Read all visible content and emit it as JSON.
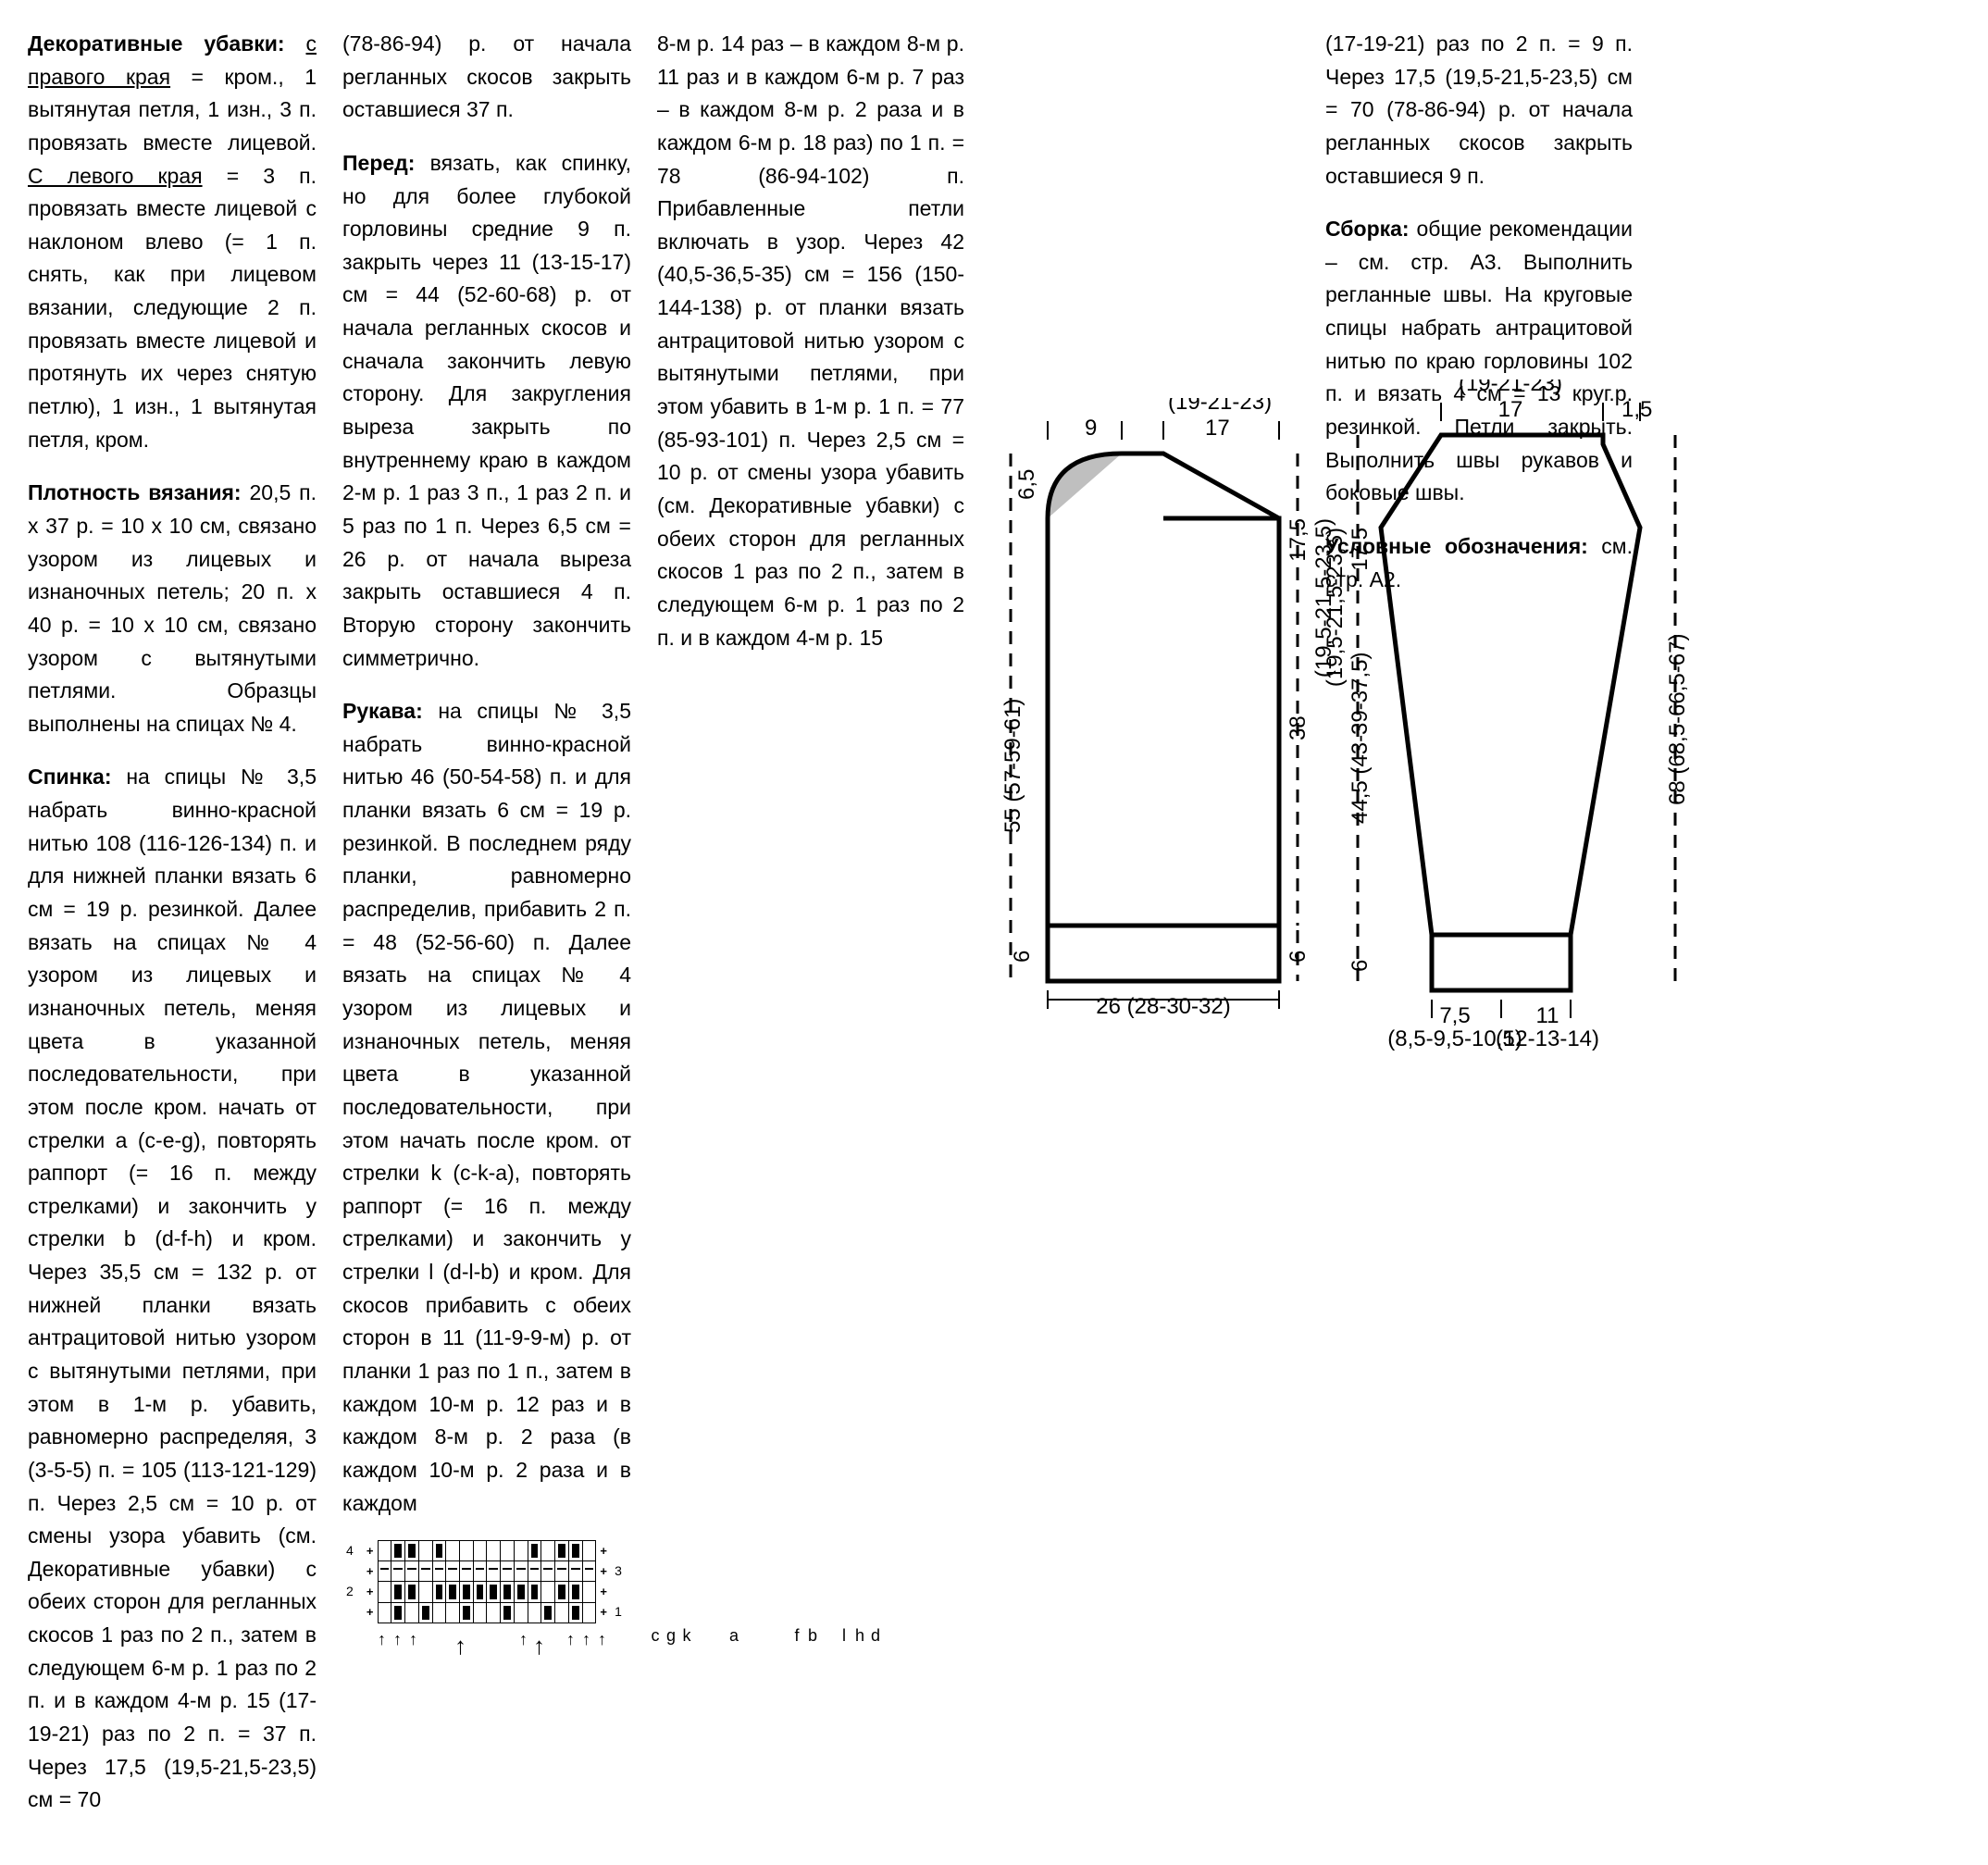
{
  "col1": {
    "p1_label": "Декоративные убавки:",
    "p1_underline1": "с правого края",
    "p1_text1": " = кром., 1 вытянутая петля, 1 изн., 3 п. провязать вместе лицевой. ",
    "p1_underline2": "С левого края",
    "p1_text2": " = 3 п. провязать вместе лицевой с наклоном влево (= 1 п. снять, как при лицевом вязании, следующие 2 п. провязать вместе лицевой и протянуть их через снятую петлю), 1 изн., 1 вытянутая петля, кром.",
    "p2_label": "Плотность вязания:",
    "p2_text": " 20,5 п. x 37 р. = 10 x 10 см, связано узором из лицевых и изнаночных петель; 20 п. x 40 р. = 10 x 10 см, связано узором с вытянутыми петлями. Образцы выполнены на спицах № 4.",
    "p3_label": "Спинка:",
    "p3_text": " на спицы № 3,5 набрать винно-красной нитью 108 (116-126-134) п. и для нижней планки вязать 6 см = 19 р. резинкой. Далее вязать на спицах № 4 узором из лицевых и изнаночных петель, меняя цвета в указанной последовательности, при этом после кром. начать от стрелки a (c-e-g), повторять раппорт (= 16 п. между стрелками) и закончить у стрелки b (d-f-h) и кром. Через 35,5 см = 132 р. от нижней планки вязать антрацитовой нитью узором с вытянутыми петлями, при этом в 1-м р. убавить, равномерно распределяя, 3 (3-5-5) п. = 105 (113-121-129) п. Через 2,5 см = 10 р. от смены узора убавить (см. Декоративные убавки) с обеих сторон для регланных скосов 1 раз по 2 п., затем в следующем 6-м р. 1 раз по 2 п. и в каждом 4-м р. 15 (17-19-21) раз по 2 п. = 37 п. Через 17,5 (19,5-21,5-23,5) см = 70"
  },
  "col2": {
    "p1_text": "(78-86-94) р. от начала регланных скосов закрыть оставшиеся 37 п.",
    "p2_label": "Перед:",
    "p2_text": " вязать, как спинку, но для более глубокой горловины средние 9 п. закрыть через 11 (13-15-17) см = 44 (52-60-68) р. от начала регланных скосов и сначала закончить левую сторону. Для закругления выреза закрыть по внутреннему краю в каждом 2-м р. 1 раз 3 п., 1 раз 2 п. и 5 раз по 1 п. Через 6,5 см = 26 р. от начала выреза закрыть оставшиеся 4 п. Вторую сторону закончить симметрично.",
    "p3_label": "Рукава:",
    "p3_text": " на спицы № 3,5 набрать винно-красной нитью 46 (50-54-58) п. и для планки вязать 6 см = 19 р. резинкой. В последнем ряду планки, равномерно распределив, прибавить 2 п. = 48 (52-56-60) п. Далее вязать на спицах № 4 узором из лицевых и изнаночных петель, меняя цвета в указанной последовательности, при этом начать после кром. от стрелки k (c-k-a), повторять раппорт (= 16 п. между стрелками) и закончить у стрелки l (d-l-b) и кром. Для скосов прибавить с обеих сторон в 11 (11-9-9-м) р. от планки 1 раз по 1 п., затем в каждом 10-м р. 12 раз и в каждом 8-м р. 2 раза (в каждом 10-м р. 2 раза и в каждом"
  },
  "col3": {
    "p1_text": "8-м р. 14 раз – в каждом 8-м р. 11 раз и в каждом 6-м р. 7 раз – в каждом 8-м р. 2 раза и в каждом 6-м р. 18 раз) по 1 п. = 78 (86-94-102) п. Прибавленные петли включать в узор. Через 42 (40,5-36,5-35) см = 156 (150-144-138) р. от планки вязать антрацитовой нитью узором с вытянутыми петлями, при этом убавить в 1-м р. 1 п. = 77 (85-93-101) п. Через 2,5 см = 10 р. от смены узора убавить (см. Декоративные убавки) с обеих сторон для регланных скосов 1 раз по 2 п., затем в следующем 6-м р. 1 раз по 2 п. и в каждом 4-м р. 15"
  },
  "col4": {
    "p1_text": "(17-19-21) раз по 2 п. = 9 п. Через 17,5 (19,5-21,5-23,5) см = 70 (78-86-94) р. от начала регланных скосов закрыть оставшиеся 9 п.",
    "p2_label": "Сборка:",
    "p2_text": " общие рекомендации – см. стр. А3. Выполнить регланные швы. На круговые спицы набрать антрацитовой нитью по краю горловины 102 п. и вязать 4 см = 13 круг.р. резинкой. Петли закрыть. Выполнить швы рукавов и боковые швы.",
    "p3_label": "Условные обозначения:",
    "p3_text": " см. стр. А2."
  },
  "chart": {
    "rows": [
      [
        "plus",
        "knit",
        "purl",
        "purl",
        "knit",
        "purl",
        "knit",
        "knit",
        "knit",
        "knit",
        "knit",
        "knit",
        "purl",
        "knit",
        "purl",
        "purl",
        "knit",
        "plus"
      ],
      [
        "plus",
        "line",
        "line",
        "line",
        "line",
        "line",
        "line",
        "line",
        "line",
        "line",
        "line",
        "line",
        "line",
        "line",
        "line",
        "line",
        "line",
        "plus"
      ],
      [
        "plus",
        "knit",
        "purl",
        "purl",
        "knit",
        "purl",
        "purl",
        "purl",
        "purl",
        "purl",
        "purl",
        "purl",
        "purl",
        "knit",
        "purl",
        "purl",
        "knit",
        "plus"
      ],
      [
        "plus",
        "knit",
        "purl",
        "knit",
        "purl",
        "knit",
        "knit",
        "purl",
        "knit",
        "knit",
        "purl",
        "knit",
        "knit",
        "purl",
        "knit",
        "purl",
        "knit",
        "plus"
      ]
    ],
    "row_labels_left": [
      "4",
      "",
      "2",
      ""
    ],
    "row_labels_right": [
      "",
      "3",
      "",
      "1"
    ],
    "arrow_labels": [
      "",
      "c",
      "g",
      "k",
      "",
      "",
      "a",
      "",
      "",
      "",
      "f",
      "b",
      "",
      "l",
      "h",
      "d",
      ""
    ]
  },
  "diagram_body": {
    "top_9": "9",
    "top_17": "17",
    "top_paren": "(19-21-23)",
    "d65": "6,5",
    "d175": "17,5",
    "d175_paren": "(19,5-21,5-23,5)",
    "d55": "55 (57-59-61)",
    "d38": "38",
    "d6": "6",
    "bottom": "26 (28-30-32)"
  },
  "diagram_sleeve": {
    "top_17": "17",
    "top_15": "1,5",
    "top_paren": "(19-21-23)",
    "d175": "17,5",
    "d175_paren": "(19,5-21,5-23,5)",
    "d445": "44,5 (43-39-37,5)",
    "d68": "68 (68,5-66,5-67)",
    "d6": "6",
    "bottom_75": "7,5",
    "bottom_11": "11",
    "bottom_75_paren": "(8,5-9,5-10,5)",
    "bottom_11_paren": "(12-13-14)"
  }
}
